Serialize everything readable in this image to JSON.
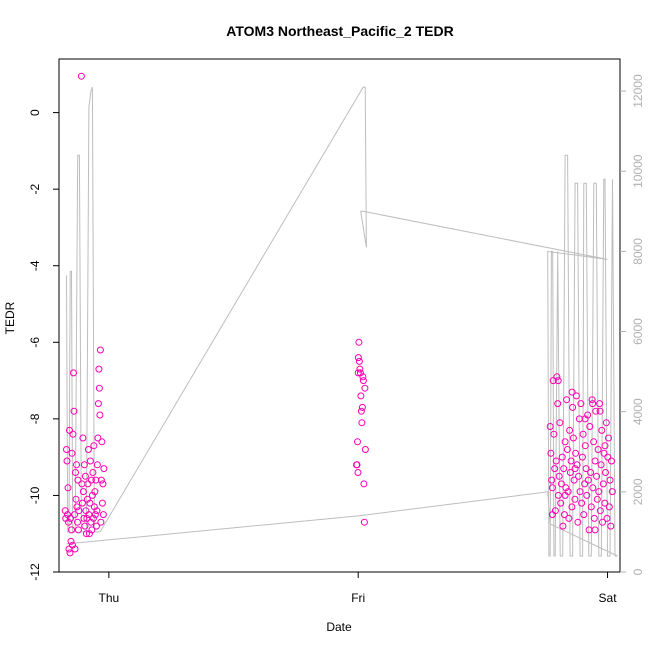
{
  "chart_data": {
    "type": "scatter",
    "title": "ATOM3 Northeast_Pacific_2 TEDR",
    "xlabel": "Date",
    "ylabel": "TEDR",
    "x_ticks": [
      "Thu",
      "Fri",
      "Sat"
    ],
    "y_ticks": [
      "-12",
      "-10",
      "-8",
      "-6",
      "-4",
      "-2",
      "0"
    ],
    "y_right_ticks": [
      "0",
      "2000",
      "4000",
      "6000",
      "8000",
      "10000",
      "12000"
    ],
    "xlim": [
      -0.2,
      2.05
    ],
    "ylim": [
      -12,
      1.4
    ],
    "y_right_lim": [
      0,
      12800
    ],
    "colors": {
      "points": "#ff00b4",
      "altitude": "#bdbdbd",
      "right_axis": "#b0b0b0"
    },
    "series": [
      {
        "type": "scatter",
        "points": [
          [
            -0.175,
            -10.4
          ],
          [
            -0.173,
            -10.6
          ],
          [
            -0.17,
            -8.8
          ],
          [
            -0.168,
            -9.1
          ],
          [
            -0.166,
            -10.5
          ],
          [
            -0.164,
            -9.8
          ],
          [
            -0.162,
            -10.7
          ],
          [
            -0.16,
            -11.4
          ],
          [
            -0.158,
            -8.3
          ],
          [
            -0.156,
            -11.5
          ],
          [
            -0.154,
            -10.6
          ],
          [
            -0.152,
            -11.2
          ],
          [
            -0.15,
            -10.9
          ],
          [
            -0.148,
            -8.9
          ],
          [
            -0.146,
            -11.3
          ],
          [
            -0.144,
            -8.4
          ],
          [
            -0.142,
            -6.8
          ],
          [
            -0.14,
            -7.8
          ],
          [
            -0.138,
            -10.5
          ],
          [
            -0.136,
            -11.4
          ],
          [
            -0.134,
            -9.4
          ],
          [
            -0.132,
            -10.1
          ],
          [
            -0.13,
            -9.2
          ],
          [
            -0.128,
            -10.3
          ],
          [
            -0.126,
            -10.7
          ],
          [
            -0.124,
            -9.6
          ],
          [
            -0.122,
            -10.9
          ],
          [
            -0.12,
            -10.4
          ],
          [
            -0.11,
            0.95
          ],
          [
            -0.108,
            -9.7
          ],
          [
            -0.106,
            -10.2
          ],
          [
            -0.104,
            -8.5
          ],
          [
            -0.102,
            -9.9
          ],
          [
            -0.1,
            -10.6
          ],
          [
            -0.098,
            -9.2
          ],
          [
            -0.096,
            -10.8
          ],
          [
            -0.094,
            -9.5
          ],
          [
            -0.092,
            -10.4
          ],
          [
            -0.09,
            -11.0
          ],
          [
            -0.088,
            -10.6
          ],
          [
            -0.086,
            -10.1
          ],
          [
            -0.084,
            -9.7
          ],
          [
            -0.082,
            -8.8
          ],
          [
            -0.08,
            -10.5
          ],
          [
            -0.078,
            -11.0
          ],
          [
            -0.076,
            -10.2
          ],
          [
            -0.074,
            -9.1
          ],
          [
            -0.072,
            -10.7
          ],
          [
            -0.07,
            -9.6
          ],
          [
            -0.068,
            -10.9
          ],
          [
            -0.066,
            -10.0
          ],
          [
            -0.064,
            -9.4
          ],
          [
            -0.062,
            -10.6
          ],
          [
            -0.06,
            -8.7
          ],
          [
            -0.058,
            -10.3
          ],
          [
            -0.056,
            -9.9
          ],
          [
            -0.054,
            -10.5
          ],
          [
            -0.052,
            -9.6
          ],
          [
            -0.05,
            -10.8
          ],
          [
            -0.048,
            -10.4
          ],
          [
            -0.046,
            -9.2
          ],
          [
            -0.044,
            -8.5
          ],
          [
            -0.042,
            -7.6
          ],
          [
            -0.04,
            -6.7
          ],
          [
            -0.038,
            -7.2
          ],
          [
            -0.036,
            -7.9
          ],
          [
            -0.034,
            -6.2
          ],
          [
            -0.032,
            -10.7
          ],
          [
            -0.03,
            -9.6
          ],
          [
            -0.028,
            -8.6
          ],
          [
            -0.026,
            -10.2
          ],
          [
            -0.024,
            -9.7
          ],
          [
            -0.022,
            -10.5
          ],
          [
            -0.02,
            -9.3
          ],
          [
            0.995,
            -9.2
          ],
          [
            0.997,
            -8.6
          ],
          [
            0.999,
            -9.4
          ],
          [
            1.001,
            -6.4
          ],
          [
            1.003,
            -6.0
          ],
          [
            1.005,
            -6.5
          ],
          [
            1.007,
            -6.7
          ],
          [
            1.009,
            -6.8
          ],
          [
            1.011,
            -7.4
          ],
          [
            1.013,
            -7.8
          ],
          [
            1.015,
            -8.1
          ],
          [
            1.017,
            -7.7
          ],
          [
            1.019,
            -6.9
          ],
          [
            1.021,
            -7.0
          ],
          [
            1.023,
            -9.7
          ],
          [
            1.025,
            -10.7
          ],
          [
            1.027,
            -7.2
          ],
          [
            1.029,
            -8.8
          ],
          [
            0.993,
            -9.2
          ],
          [
            1.0,
            -6.8
          ],
          [
            1.77,
            -8.2
          ],
          [
            1.773,
            -8.9
          ],
          [
            1.776,
            -9.6
          ],
          [
            1.779,
            -9.8
          ],
          [
            1.782,
            -7.0
          ],
          [
            1.785,
            -8.4
          ],
          [
            1.788,
            -9.3
          ],
          [
            1.791,
            -10.4
          ],
          [
            1.794,
            -9.1
          ],
          [
            1.797,
            -6.9
          ],
          [
            1.8,
            -7.6
          ],
          [
            1.803,
            -10.0
          ],
          [
            1.806,
            -9.5
          ],
          [
            1.809,
            -8.1
          ],
          [
            1.812,
            -10.2
          ],
          [
            1.815,
            -9.7
          ],
          [
            1.818,
            -9.0
          ],
          [
            1.821,
            -10.8
          ],
          [
            1.824,
            -9.3
          ],
          [
            1.827,
            -10.5
          ],
          [
            1.83,
            -8.6
          ],
          [
            1.833,
            -9.8
          ],
          [
            1.836,
            -7.5
          ],
          [
            1.839,
            -8.8
          ],
          [
            1.842,
            -9.9
          ],
          [
            1.845,
            -10.6
          ],
          [
            1.848,
            -8.3
          ],
          [
            1.851,
            -9.4
          ],
          [
            1.854,
            -9.1
          ],
          [
            1.857,
            -10.3
          ],
          [
            1.86,
            -7.7
          ],
          [
            1.863,
            -8.5
          ],
          [
            1.866,
            -9.6
          ],
          [
            1.869,
            -10.1
          ],
          [
            1.872,
            -8.9
          ],
          [
            1.875,
            -7.4
          ],
          [
            1.878,
            -9.2
          ],
          [
            1.881,
            -10.7
          ],
          [
            1.884,
            -9.5
          ],
          [
            1.887,
            -8.0
          ],
          [
            1.89,
            -9.9
          ],
          [
            1.893,
            -7.6
          ],
          [
            1.896,
            -10.2
          ],
          [
            1.899,
            -9.0
          ],
          [
            1.902,
            -8.4
          ],
          [
            1.905,
            -10.5
          ],
          [
            1.908,
            -9.7
          ],
          [
            1.911,
            -8.7
          ],
          [
            1.914,
            -9.3
          ],
          [
            1.917,
            -10.0
          ],
          [
            1.92,
            -7.9
          ],
          [
            1.923,
            -9.6
          ],
          [
            1.926,
            -10.9
          ],
          [
            1.929,
            -8.2
          ],
          [
            1.932,
            -9.4
          ],
          [
            1.935,
            -10.3
          ],
          [
            1.938,
            -7.5
          ],
          [
            1.941,
            -9.8
          ],
          [
            1.944,
            -8.6
          ],
          [
            1.947,
            -10.6
          ],
          [
            1.95,
            -9.1
          ],
          [
            1.953,
            -7.8
          ],
          [
            1.956,
            -9.5
          ],
          [
            1.959,
            -10.1
          ],
          [
            1.962,
            -8.8
          ],
          [
            1.965,
            -9.9
          ],
          [
            1.968,
            -7.6
          ],
          [
            1.971,
            -10.4
          ],
          [
            1.974,
            -9.2
          ],
          [
            1.977,
            -8.3
          ],
          [
            1.98,
            -10.7
          ],
          [
            1.983,
            -9.7
          ],
          [
            1.986,
            -8.9
          ],
          [
            1.989,
            -10.2
          ],
          [
            1.992,
            -9.4
          ],
          [
            1.995,
            -8.1
          ],
          [
            1.998,
            -10.6
          ],
          [
            2.001,
            -9.0
          ],
          [
            2.004,
            -8.5
          ],
          [
            2.007,
            -10.3
          ],
          [
            2.01,
            -9.6
          ],
          [
            2.013,
            -10.8
          ],
          [
            2.016,
            -9.1
          ],
          [
            2.019,
            -9.9
          ],
          [
            1.779,
            -10.5
          ],
          [
            1.83,
            -10.0
          ],
          [
            1.87,
            -9.3
          ],
          [
            1.91,
            -8.0
          ],
          [
            1.95,
            -10.9
          ],
          [
            1.99,
            -8.7
          ],
          [
            1.802,
            -7.0
          ],
          [
            1.858,
            -7.3
          ],
          [
            1.94,
            -7.6
          ],
          [
            1.97,
            -7.8
          ]
        ]
      },
      {
        "type": "line",
        "axis": "right",
        "points": [
          [
            -0.17,
            7400
          ],
          [
            -0.165,
            1000
          ],
          [
            -0.16,
            1000
          ],
          [
            -0.155,
            7500
          ],
          [
            -0.15,
            7500
          ],
          [
            -0.145,
            1000
          ],
          [
            -0.14,
            1000
          ],
          [
            -0.135,
            1000
          ],
          [
            -0.125,
            10400
          ],
          [
            -0.118,
            10400
          ],
          [
            -0.11,
            1000
          ],
          [
            -0.1,
            1000
          ],
          [
            -0.09,
            1000
          ],
          [
            -0.08,
            11600
          ],
          [
            -0.072,
            12000
          ],
          [
            -0.066,
            12100
          ],
          [
            -0.058,
            1000
          ],
          [
            -0.035,
            1000
          ],
          [
            1.02,
            12100
          ],
          [
            1.028,
            12100
          ],
          [
            1.033,
            8100
          ],
          [
            1.01,
            9000
          ],
          [
            1.02,
            9000
          ],
          [
            2.0,
            7800
          ],
          [
            1.76,
            8000
          ],
          [
            1.765,
            400
          ],
          [
            1.77,
            400
          ],
          [
            1.775,
            8000
          ],
          [
            1.78,
            8000
          ],
          [
            1.785,
            400
          ],
          [
            1.79,
            400
          ],
          [
            1.8,
            8000
          ],
          [
            1.81,
            400
          ],
          [
            1.82,
            400
          ],
          [
            1.83,
            10400
          ],
          [
            1.84,
            10400
          ],
          [
            1.85,
            400
          ],
          [
            1.86,
            400
          ],
          [
            1.87,
            9700
          ],
          [
            1.88,
            9700
          ],
          [
            1.89,
            400
          ],
          [
            1.9,
            400
          ],
          [
            1.905,
            9700
          ],
          [
            1.915,
            9700
          ],
          [
            1.925,
            400
          ],
          [
            1.935,
            400
          ],
          [
            1.945,
            9700
          ],
          [
            1.955,
            9700
          ],
          [
            1.965,
            400
          ],
          [
            1.975,
            400
          ],
          [
            1.985,
            9800
          ],
          [
            1.99,
            9800
          ],
          [
            2.0,
            400
          ],
          [
            2.01,
            400
          ],
          [
            2.02,
            9800
          ],
          [
            2.03,
            400
          ],
          [
            2.04,
            400
          ],
          [
            1.77,
            1200
          ],
          [
            1.76,
            2000
          ],
          [
            1.0,
            1400
          ],
          [
            -0.17,
            700
          ]
        ]
      }
    ],
    "grid": false,
    "legend": "none"
  }
}
